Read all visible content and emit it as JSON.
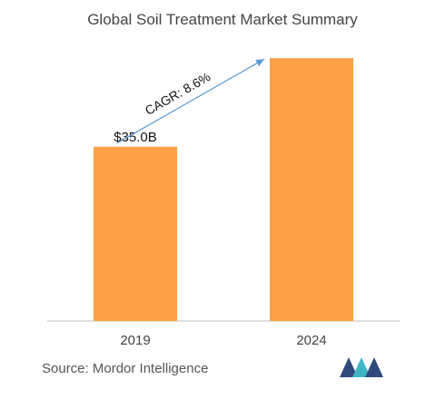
{
  "chart_data": {
    "type": "bar",
    "title": "Global Soil Treatment Market Summary",
    "categories": [
      "2019",
      "2024"
    ],
    "values": [
      35.0,
      52.8
    ],
    "data_labels": [
      "$35.0B",
      ""
    ],
    "annotation": "CAGR: 8.6%",
    "ylim": [
      0,
      55
    ],
    "grid": false,
    "legend": "none",
    "bar_color": "#FFA047",
    "arrow_color": "#5B9BD5",
    "axis_color": "#BFBFBF"
  },
  "source": "Source: Mordor Intelligence",
  "logo_icon": "mordor-intelligence-logo-icon",
  "logo_colors": [
    "#2E4A7D",
    "#3FB6C6"
  ]
}
